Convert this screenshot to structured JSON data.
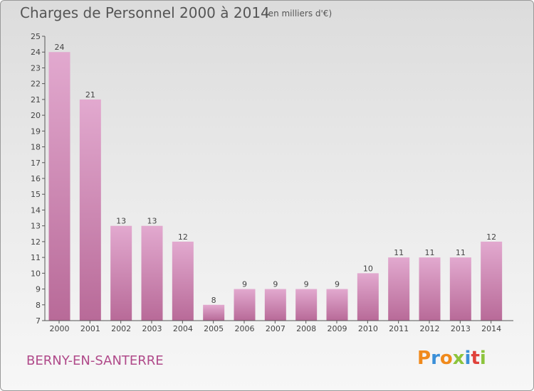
{
  "header": {
    "title": "Charges de Personnel 2000 à 2014",
    "unit": "(en milliers d'€)"
  },
  "footer": {
    "place": "BERNY-EN-SANTERRE",
    "logo": "Proxiti"
  },
  "colors": {
    "bar_top": "#e2a9cf",
    "bar_bottom": "#b86a98",
    "place_text": "#b04a8a",
    "logo_letters": [
      "#f08a1c",
      "#3a8fd8",
      "#f08a1c",
      "#8cc43c",
      "#3a8fd8",
      "#e0413a",
      "#8cc43c"
    ]
  },
  "chart_data": {
    "type": "bar",
    "title": "Charges de Personnel 2000 à 2014",
    "subtitle": "(en milliers d'€)",
    "categories": [
      "2000",
      "2001",
      "2002",
      "2003",
      "2004",
      "2005",
      "2006",
      "2007",
      "2008",
      "2009",
      "2010",
      "2011",
      "2012",
      "2013",
      "2014"
    ],
    "values": [
      24,
      21,
      13,
      13,
      12,
      8,
      9,
      9,
      9,
      9,
      10,
      11,
      11,
      11,
      12
    ],
    "ylim": [
      7,
      25
    ],
    "yticks": [
      7,
      8,
      9,
      10,
      11,
      12,
      13,
      14,
      15,
      16,
      17,
      18,
      19,
      20,
      21,
      22,
      23,
      24,
      25
    ],
    "xlabel": "",
    "ylabel": "",
    "grid": false,
    "data_labels": true
  }
}
